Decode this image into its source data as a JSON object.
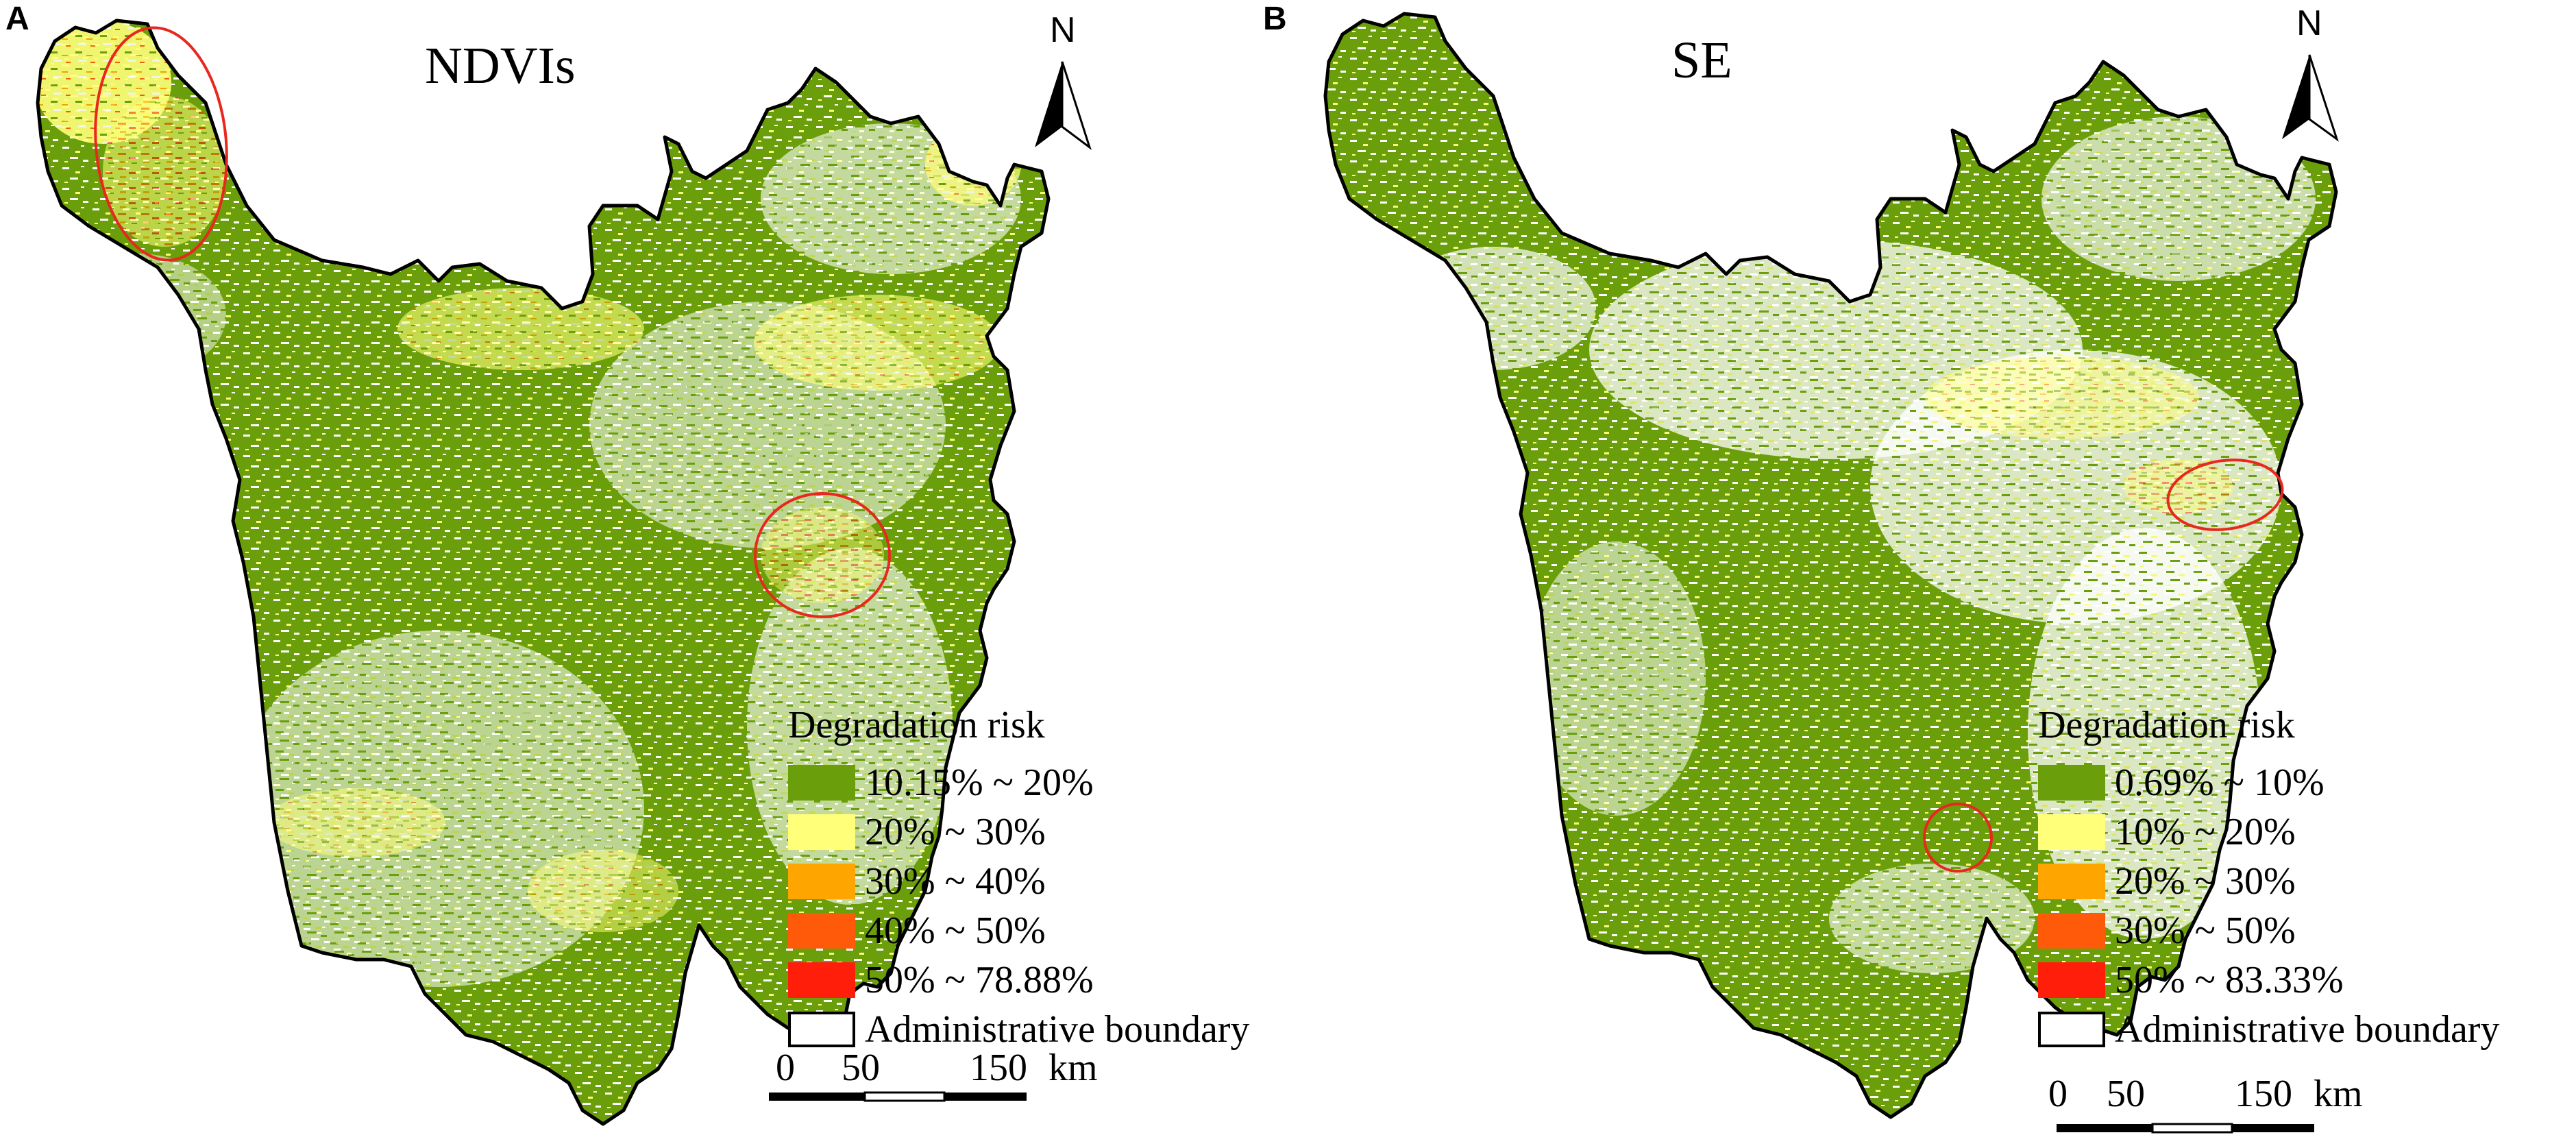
{
  "colors": {
    "green": "#6a9f0b",
    "yellow": "#ffff7a",
    "orange": "#ffa500",
    "dark_orange": "#ff5a0a",
    "red": "#ff1e0a",
    "boundary": "#000000",
    "highlight_circle": "#e8281e"
  },
  "panels": [
    {
      "letter": "A",
      "title": "NDVIs",
      "north_label": "N",
      "legend": {
        "title": "Degradation risk",
        "classes": [
          {
            "label": "10.15% ~ 20%",
            "color": "#6a9f0b"
          },
          {
            "label": "20% ~ 30%",
            "color": "#ffff7a"
          },
          {
            "label": "30% ~ 40%",
            "color": "#ffa500"
          },
          {
            "label": "40% ~ 50%",
            "color": "#ff5a0a"
          },
          {
            "label": "50% ~ 78.88%",
            "color": "#ff1e0a"
          }
        ],
        "boundary_label": "Administrative boundary"
      },
      "scale_bar": {
        "ticks": [
          "0",
          "50",
          "150"
        ],
        "unit": "km"
      },
      "highlight_count": 2
    },
    {
      "letter": "B",
      "title": "SE",
      "north_label": "N",
      "legend": {
        "title": "Degradation risk",
        "classes": [
          {
            "label": "0.69% ~ 10%",
            "color": "#6a9f0b"
          },
          {
            "label": "10% ~ 20%",
            "color": "#ffff7a"
          },
          {
            "label": "20% ~ 30%",
            "color": "#ffa500"
          },
          {
            "label": "30% ~ 50%",
            "color": "#ff5a0a"
          },
          {
            "label": "50% ~ 83.33%",
            "color": "#ff1e0a"
          }
        ],
        "boundary_label": "Administrative boundary"
      },
      "scale_bar": {
        "ticks": [
          "0",
          "50",
          "150"
        ],
        "unit": "km"
      },
      "highlight_count": 2
    }
  ]
}
